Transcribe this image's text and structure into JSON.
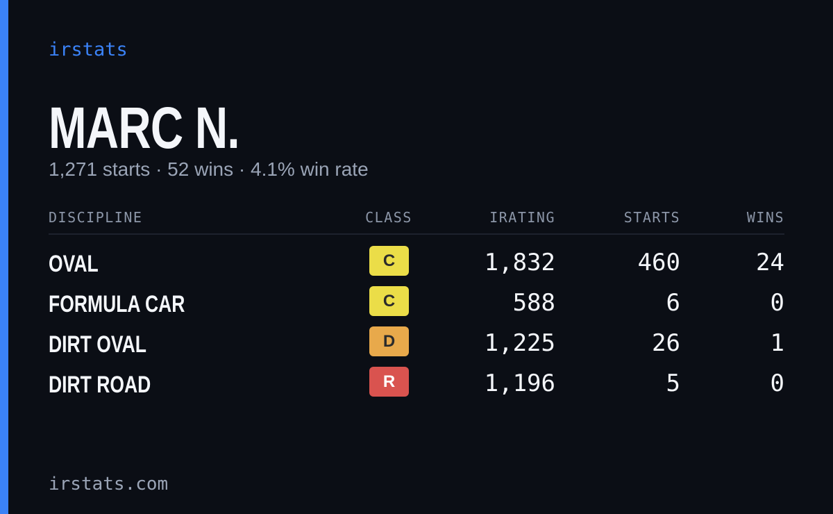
{
  "brand": "irstats",
  "name": "MARC N.",
  "summary": "1,271 starts · 52 wins · 4.1% win rate",
  "table": {
    "headers": [
      "DISCIPLINE",
      "CLASS",
      "IRATING",
      "STARTS",
      "WINS"
    ],
    "rows": [
      {
        "discipline": "OVAL",
        "class": "C",
        "class_color": "#ebdd48",
        "irating": "1,832",
        "starts": "460",
        "wins": "24"
      },
      {
        "discipline": "FORMULA CAR",
        "class": "C",
        "class_color": "#ebdd48",
        "irating": "588",
        "starts": "6",
        "wins": "0"
      },
      {
        "discipline": "DIRT OVAL",
        "class": "D",
        "class_color": "#e8a94b",
        "irating": "1,225",
        "starts": "26",
        "wins": "1"
      },
      {
        "discipline": "DIRT ROAD",
        "class": "R",
        "class_color": "#d9534f",
        "irating": "1,196",
        "starts": "5",
        "wins": "0"
      }
    ]
  },
  "footer": "irstats.com"
}
